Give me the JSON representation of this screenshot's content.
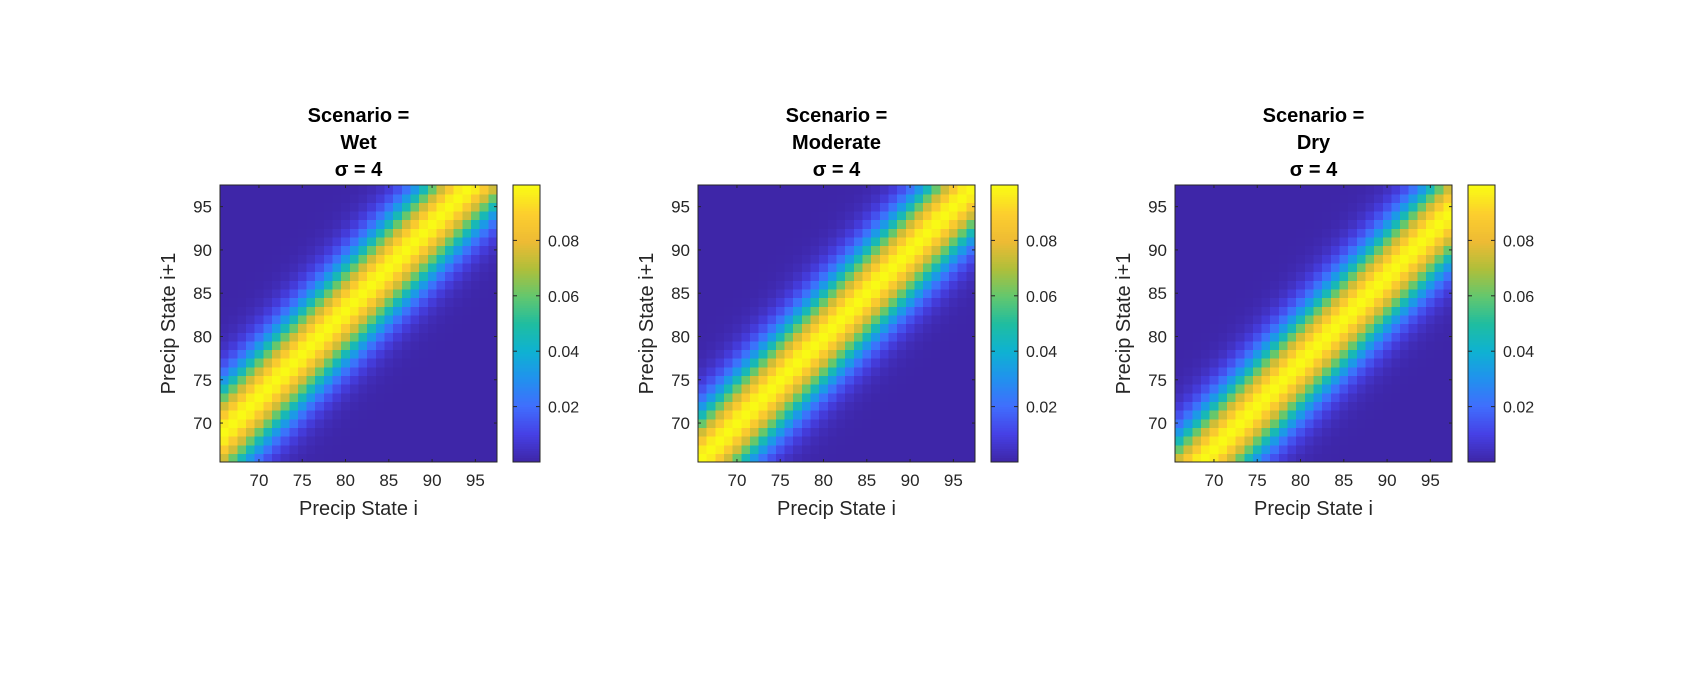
{
  "chart_data": [
    {
      "type": "heatmap",
      "title_lines": [
        "Scenario =",
        "Wet"
      ],
      "sigma_label": "σ = 4",
      "xlabel": "Precip State i",
      "ylabel": "Precip State i+1",
      "xlim": [
        65.5,
        97.5
      ],
      "ylim": [
        65.5,
        97.5
      ],
      "xticks": [
        70,
        75,
        80,
        85,
        90,
        95
      ],
      "yticks": [
        70,
        75,
        80,
        85,
        90,
        95
      ],
      "states": [
        66,
        97
      ],
      "sigma": 4,
      "shift": 3,
      "colorbar": {
        "clim": [
          0,
          0.1
        ],
        "ticks": [
          0.02,
          0.04,
          0.06,
          0.08
        ]
      }
    },
    {
      "type": "heatmap",
      "title_lines": [
        "Scenario =",
        "Moderate"
      ],
      "sigma_label": "σ = 4",
      "xlabel": "Precip State i",
      "ylabel": "Precip State i+1",
      "xlim": [
        65.5,
        97.5
      ],
      "ylim": [
        65.5,
        97.5
      ],
      "xticks": [
        70,
        75,
        80,
        85,
        90,
        95
      ],
      "yticks": [
        70,
        75,
        80,
        85,
        90,
        95
      ],
      "states": [
        66,
        97
      ],
      "sigma": 4,
      "shift": 0,
      "colorbar": {
        "clim": [
          0,
          0.1
        ],
        "ticks": [
          0.02,
          0.04,
          0.06,
          0.08
        ]
      }
    },
    {
      "type": "heatmap",
      "title_lines": [
        "Scenario =",
        "Dry"
      ],
      "sigma_label": "σ = 4",
      "xlabel": "Precip State i",
      "ylabel": "Precip State i+1",
      "xlim": [
        65.5,
        97.5
      ],
      "ylim": [
        65.5,
        97.5
      ],
      "xticks": [
        70,
        75,
        80,
        85,
        90,
        95
      ],
      "yticks": [
        70,
        75,
        80,
        85,
        90,
        95
      ],
      "states": [
        66,
        97
      ],
      "sigma": 4,
      "shift": -3,
      "colorbar": {
        "clim": [
          0,
          0.1
        ],
        "ticks": [
          0.02,
          0.04,
          0.06,
          0.08
        ]
      }
    }
  ],
  "colormap": "parula"
}
